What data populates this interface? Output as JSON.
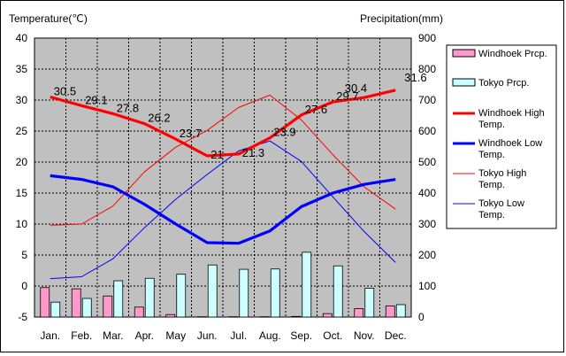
{
  "chart_data": {
    "type": "line",
    "title": "",
    "ylabel_left": "Temperature(℃)",
    "ylabel_right": "Precipitation(mm)",
    "categories": [
      "Jan.",
      "Feb.",
      "Mar.",
      "Apr.",
      "May",
      "Jun.",
      "Jul.",
      "Aug.",
      "Sep.",
      "Oct.",
      "Nov.",
      "Dec."
    ],
    "ylim_left": [
      -5,
      40
    ],
    "ylim_right": [
      0,
      900
    ],
    "yticks_left": [
      "-5",
      "0",
      "5",
      "10",
      "15",
      "20",
      "25",
      "30",
      "35",
      "40"
    ],
    "yticks_right": [
      "0",
      "100",
      "200",
      "300",
      "400",
      "500",
      "600",
      "700",
      "800",
      "900"
    ],
    "bar_series": [
      {
        "name": "Windhoek Prcp.",
        "color": "#ff99cc",
        "values": [
          95,
          91,
          68,
          32,
          8,
          1,
          1,
          1,
          2,
          11,
          27,
          36
        ]
      },
      {
        "name": "Tokyo Prcp.",
        "color": "#ccffff",
        "values": [
          48,
          60,
          117,
          125,
          138,
          168,
          154,
          155,
          209,
          165,
          93,
          40
        ]
      }
    ],
    "line_series": [
      {
        "name": "Windhoek High Temp.",
        "color": "#ff0000",
        "width": "thick",
        "values": [
          30.5,
          29.1,
          27.8,
          26.2,
          23.7,
          21.0,
          21.3,
          23.9,
          27.6,
          29.7,
          30.4,
          31.6
        ]
      },
      {
        "name": "Windhoek Low Temp.",
        "color": "#0000ff",
        "width": "thick",
        "values": [
          17.8,
          17.2,
          16.0,
          13.2,
          10.0,
          7.0,
          6.9,
          8.9,
          12.8,
          15.0,
          16.4,
          17.2
        ]
      },
      {
        "name": "Tokyo High Temp.",
        "color": "#ff0000",
        "width": "thin",
        "values": [
          9.8,
          10.0,
          12.9,
          18.4,
          22.4,
          25.1,
          28.8,
          30.8,
          26.8,
          21.2,
          16.0,
          12.4
        ]
      },
      {
        "name": "Tokyo Low Temp.",
        "color": "#0000ff",
        "width": "thin",
        "values": [
          1.2,
          1.5,
          4.4,
          9.4,
          14.0,
          18.0,
          21.8,
          23.4,
          20.1,
          14.4,
          8.8,
          3.8
        ]
      }
    ],
    "data_labels": [
      "30.5",
      "29.1",
      "27.8",
      "26.2",
      "23.7",
      "21",
      "21.3",
      "23.9",
      "27.6",
      "29.7",
      "30.4",
      "31.6"
    ],
    "legend_labels": [
      [
        "Windhoek Prcp."
      ],
      [
        "Tokyo Prcp."
      ],
      [
        "Windhoek High",
        "Temp."
      ],
      [
        "Windhoek Low",
        "Temp."
      ],
      [
        "Tokyo High",
        "Temp."
      ],
      [
        "Tokyo Low",
        "Temp."
      ]
    ],
    "legend_position": "right",
    "grid": true,
    "plot_background": "#c0c0c0"
  }
}
